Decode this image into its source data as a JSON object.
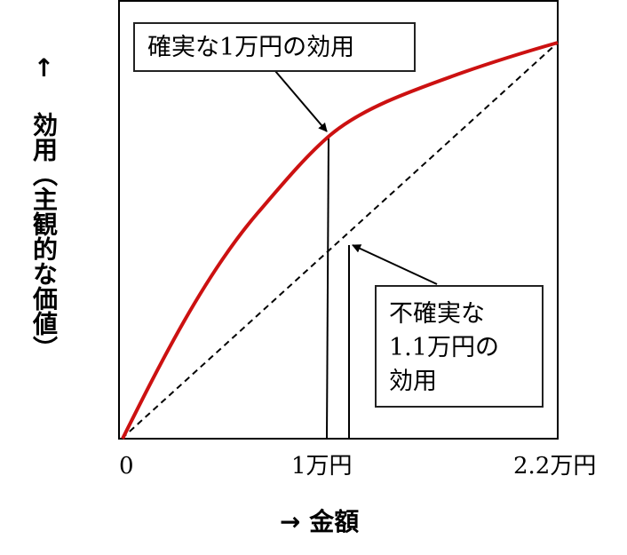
{
  "y_axis_label": "↑ 効用（主観的な価値）",
  "x_axis_label": "→ 金額",
  "x_ticks": [
    "0",
    "1万円",
    "2.2万円"
  ],
  "callouts": {
    "certain": "確実な1万円の効用",
    "uncertain_lines": [
      "不確実な",
      "1.1万円の",
      "効用"
    ]
  },
  "colors": {
    "curve": "#cc1111",
    "line": "#000000"
  }
}
